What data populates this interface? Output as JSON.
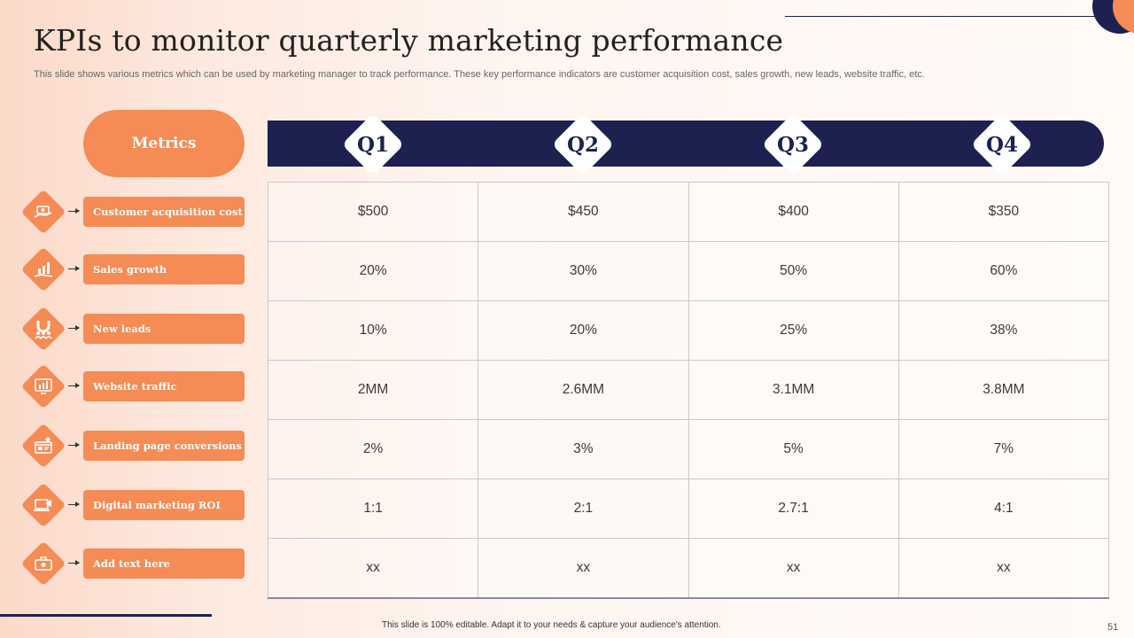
{
  "title": "KPIs to monitor quarterly marketing performance",
  "subtitle": "This slide shows various metrics which can be used by marketing manager to track performance. These key performance indicators are customer acquisition cost, sales growth, new leads, website traffic, etc.",
  "metrics_header": "Metrics",
  "quarters": [
    "Q1",
    "Q2",
    "Q3",
    "Q4"
  ],
  "metrics": [
    {
      "label": "Customer acquisition cost",
      "icon": "money-hand-icon",
      "values": [
        "$500",
        "$450",
        "$400",
        "$350"
      ]
    },
    {
      "label": "Sales growth",
      "icon": "growth-chart-icon",
      "values": [
        "20%",
        "30%",
        "50%",
        "60%"
      ]
    },
    {
      "label": "New leads",
      "icon": "magnet-people-icon",
      "values": [
        "10%",
        "20%",
        "25%",
        "38%"
      ]
    },
    {
      "label": "Website traffic",
      "icon": "web-analytics-icon",
      "values": [
        "2MM",
        "2.6MM",
        "3.1MM",
        "3.8MM"
      ]
    },
    {
      "label": "Landing page conversions",
      "icon": "landing-page-icon",
      "values": [
        "2%",
        "3%",
        "5%",
        "7%"
      ]
    },
    {
      "label": "Digital marketing ROI",
      "icon": "megaphone-laptop-icon",
      "values": [
        "1:1",
        "2:1",
        "2.7:1",
        "4:1"
      ]
    },
    {
      "label": "Add text here",
      "icon": "briefcase-gear-icon",
      "values": [
        "xx",
        "xx",
        "xx",
        "xx"
      ]
    }
  ],
  "footer_note": "This slide is 100% editable.  Adapt it to your needs & capture your audience's attention.",
  "page_number": "51",
  "colors": {
    "accent": "#f58b55",
    "navy": "#1c2150",
    "background": "#fde9df"
  }
}
